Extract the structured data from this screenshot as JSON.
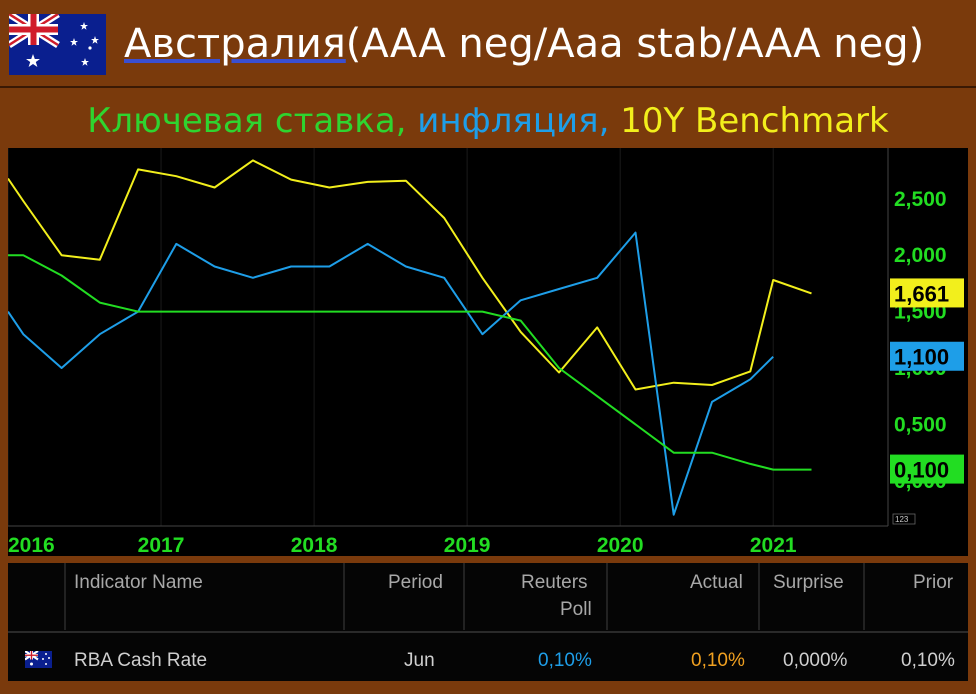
{
  "header": {
    "title_main": "Австралия",
    "title_rest": "(AAA neg/Aaa stab/AAA neg)",
    "subtitle_green": "Ключевая ставка,",
    "subtitle_blue": "инфляция,",
    "subtitle_yellow": "10Y Benchmark"
  },
  "colors": {
    "background": "#7a3a0c",
    "key_rate": "#22dd22",
    "inflation": "#1e9ee8",
    "benchmark": "#f2ef1c"
  },
  "chart_data": {
    "type": "line",
    "x_tick_labels": [
      "2016",
      "2017",
      "2018",
      "2019",
      "2020",
      "2021"
    ],
    "x_tick_positions": [
      2016.0,
      2017.0,
      2018.0,
      2019.0,
      2020.0,
      2021.0
    ],
    "xlim": [
      2016.0,
      2021.75
    ],
    "ylim": [
      -0.4,
      2.95
    ],
    "y_ticks": [
      0.0,
      0.5,
      1.0,
      1.5,
      2.0,
      2.5
    ],
    "y_tick_labels": [
      "0,000",
      "0,500",
      "1,000",
      "1,500",
      "2,000",
      "2,500"
    ],
    "corner_label": "123",
    "series": [
      {
        "key": "benchmark",
        "color": "#f2ef1c",
        "end_label": "1,661",
        "x": [
          2016.0,
          2016.1,
          2016.35,
          2016.6,
          2016.85,
          2017.1,
          2017.35,
          2017.6,
          2017.85,
          2018.1,
          2018.35,
          2018.6,
          2018.85,
          2019.1,
          2019.35,
          2019.6,
          2019.85,
          2020.1,
          2020.35,
          2020.6,
          2020.85,
          2021.0,
          2021.25
        ],
        "values": [
          2.68,
          2.48,
          2.0,
          1.96,
          2.76,
          2.7,
          2.6,
          2.84,
          2.67,
          2.6,
          2.65,
          2.66,
          2.33,
          1.8,
          1.32,
          0.96,
          1.36,
          0.81,
          0.87,
          0.85,
          0.97,
          1.78,
          1.661
        ]
      },
      {
        "key": "inflation",
        "color": "#1e9ee8",
        "end_label": "1,100",
        "x": [
          2016.0,
          2016.1,
          2016.35,
          2016.6,
          2016.85,
          2017.1,
          2017.35,
          2017.6,
          2017.85,
          2018.1,
          2018.35,
          2018.6,
          2018.85,
          2019.1,
          2019.35,
          2019.6,
          2019.85,
          2020.1,
          2020.35,
          2020.6,
          2020.85,
          2021.0
        ],
        "values": [
          1.5,
          1.3,
          1.0,
          1.3,
          1.5,
          2.1,
          1.9,
          1.8,
          1.9,
          1.9,
          2.1,
          1.9,
          1.8,
          1.3,
          1.6,
          1.7,
          1.8,
          2.2,
          -0.3,
          0.7,
          0.9,
          1.1
        ]
      },
      {
        "key": "key_rate",
        "color": "#22dd22",
        "end_label": "0,100",
        "x": [
          2016.0,
          2016.1,
          2016.35,
          2016.6,
          2016.85,
          2019.1,
          2019.35,
          2019.6,
          2019.85,
          2020.1,
          2020.35,
          2020.6,
          2020.85,
          2021.0,
          2021.25
        ],
        "values": [
          2.0,
          2.0,
          1.82,
          1.58,
          1.5,
          1.5,
          1.42,
          1.0,
          0.75,
          0.5,
          0.25,
          0.25,
          0.15,
          0.1,
          0.1
        ]
      }
    ]
  },
  "table": {
    "headers": {
      "indicator": "Indicator Name",
      "period": "Period",
      "poll_line1": "Reuters",
      "poll_line2": "Poll",
      "actual": "Actual",
      "surprise": "Surprise",
      "prior": "Prior"
    },
    "row": {
      "indicator": "RBA Cash Rate",
      "period": "Jun",
      "poll": "0,10%",
      "actual": "0,10%",
      "surprise": "0,000%",
      "prior": "0,10%"
    }
  }
}
